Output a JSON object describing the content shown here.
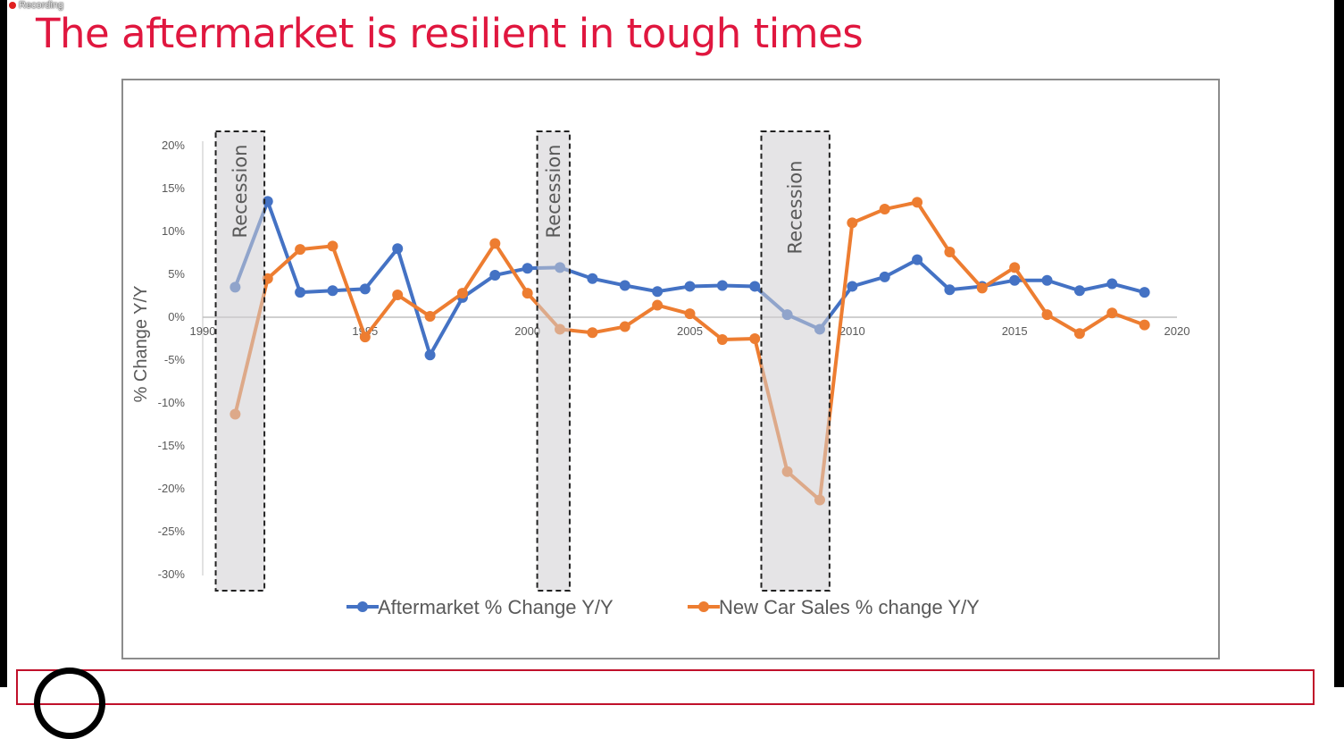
{
  "recording_label": "Recording",
  "slide_title": "The aftermarket is resilient in tough times",
  "chart_data": {
    "type": "line",
    "title": "",
    "xlabel": "",
    "ylabel": "% Change Y/Y",
    "xlim": [
      1990,
      2020
    ],
    "ylim": [
      -30,
      20
    ],
    "x_ticks": [
      1990,
      1995,
      2000,
      2005,
      2010,
      2015,
      2020
    ],
    "y_ticks": [
      20,
      15,
      10,
      5,
      0,
      -5,
      -10,
      -15,
      -20,
      -25,
      -30
    ],
    "y_tick_labels": [
      "20%",
      "15%",
      "10%",
      "5%",
      "0%",
      "-5%",
      "-10%",
      "-15%",
      "-20%",
      "-25%",
      "-30%"
    ],
    "legend_position": "bottom",
    "grid": false,
    "x": [
      1991,
      1992,
      1993,
      1994,
      1995,
      1996,
      1997,
      1998,
      1999,
      2000,
      2001,
      2002,
      2003,
      2004,
      2005,
      2006,
      2007,
      2008,
      2009,
      2010,
      2011,
      2012,
      2013,
      2014,
      2015,
      2016,
      2017,
      2018,
      2019
    ],
    "series": [
      {
        "name": "Aftermarket % Change Y/Y",
        "color": "#4472c4",
        "values": [
          3.5,
          13.5,
          2.9,
          3.1,
          3.3,
          8.0,
          -4.4,
          2.3,
          4.9,
          5.7,
          5.8,
          4.5,
          3.7,
          3.0,
          3.6,
          3.7,
          3.6,
          0.3,
          -1.4,
          3.6,
          4.7,
          6.7,
          3.2,
          3.6,
          4.3,
          4.3,
          3.1,
          3.9,
          2.9
        ]
      },
      {
        "name": "New Car Sales % change Y/Y",
        "color": "#ed7d31",
        "values": [
          -11.3,
          4.5,
          7.9,
          8.3,
          -2.3,
          2.6,
          0.1,
          2.8,
          8.6,
          2.8,
          -1.4,
          -1.8,
          -1.1,
          1.4,
          0.4,
          -2.6,
          -2.5,
          -18.0,
          -21.3,
          11.0,
          12.6,
          13.4,
          7.6,
          3.4,
          5.8,
          0.3,
          -1.9,
          0.5,
          -0.9
        ]
      }
    ],
    "annotations": [
      {
        "label": "Recession",
        "start": 1990.4,
        "end": 1991.9
      },
      {
        "label": "Recession",
        "start": 2000.3,
        "end": 2001.3
      },
      {
        "label": "Recession",
        "start": 2007.2,
        "end": 2009.3
      }
    ]
  }
}
